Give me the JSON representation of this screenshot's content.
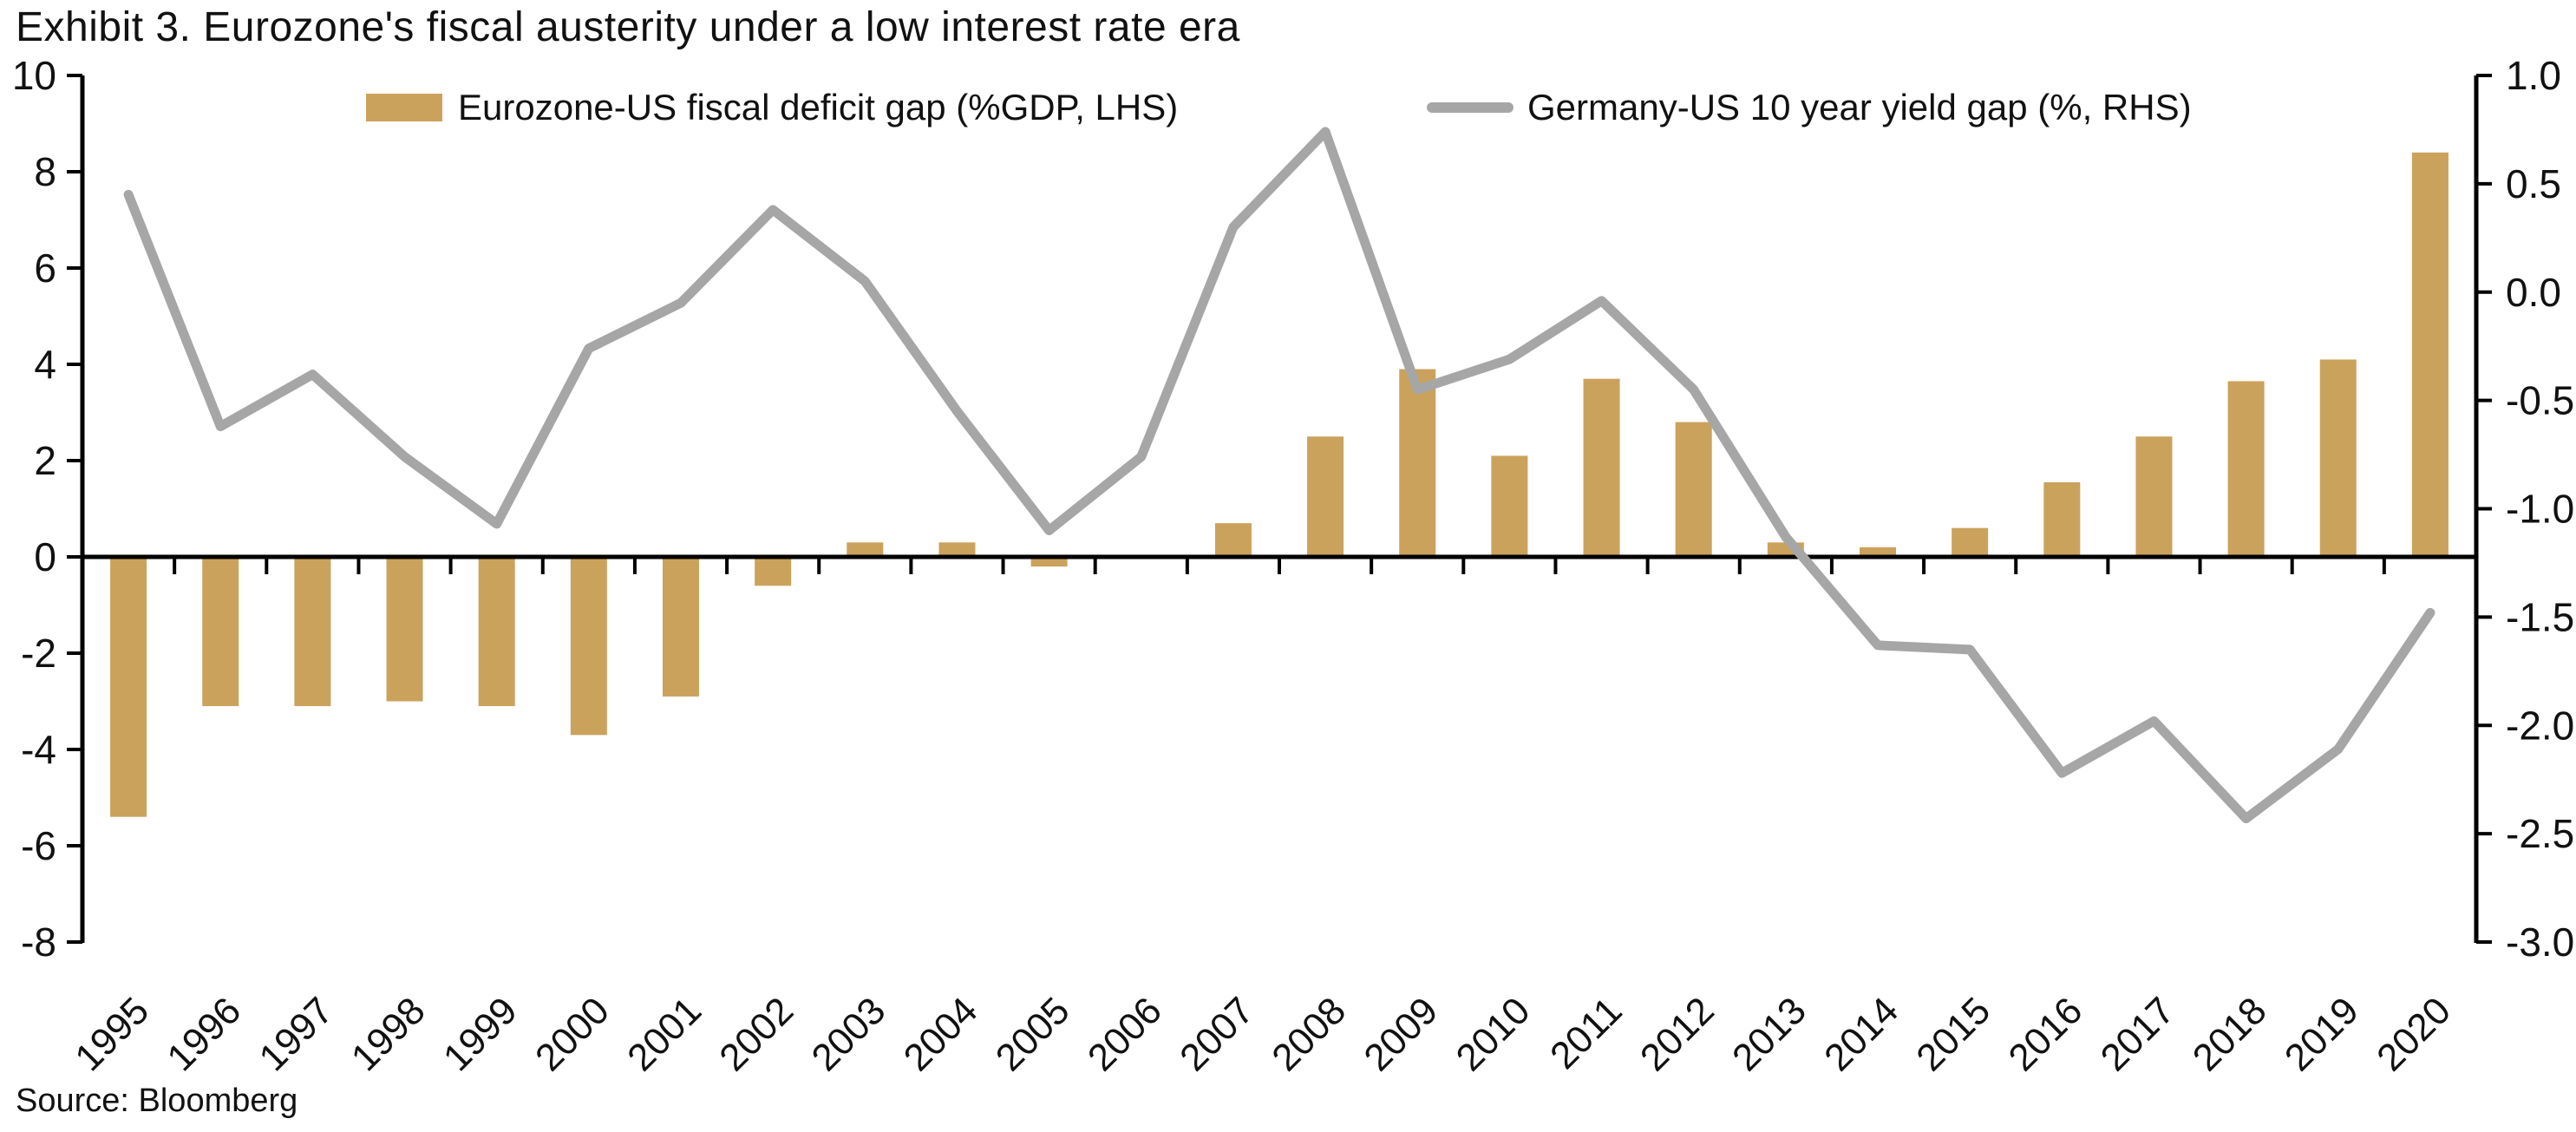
{
  "title": "Exhibit 3. Eurozone's fiscal austerity under a low interest rate era",
  "source": "Source: Bloomberg",
  "colors": {
    "bar": "#CBA25C",
    "line": "#A6A6A6",
    "axis": "#000000",
    "text": "#111111"
  },
  "chart_data": {
    "type": "bar",
    "subtype": "bar-and-line-dual-axis",
    "categories": [
      "1995",
      "1996",
      "1997",
      "1998",
      "1999",
      "2000",
      "2001",
      "2002",
      "2003",
      "2004",
      "2005",
      "2006",
      "2007",
      "2008",
      "2009",
      "2010",
      "2011",
      "2012",
      "2013",
      "2014",
      "2015",
      "2016",
      "2017",
      "2018",
      "2019",
      "2020"
    ],
    "series": [
      {
        "name": "Eurozone-US fiscal deficit gap (%GDP, LHS)",
        "type": "bar",
        "axis": "left",
        "color": "#CBA25C",
        "values": [
          -5.4,
          -3.1,
          -3.1,
          -3.0,
          -3.1,
          -3.7,
          -2.9,
          -0.6,
          0.3,
          0.3,
          -0.2,
          0.0,
          0.7,
          2.5,
          3.9,
          2.1,
          3.7,
          2.8,
          0.3,
          0.2,
          0.6,
          1.55,
          2.5,
          3.65,
          4.1,
          8.4
        ]
      },
      {
        "name": "Germany-US 10 year yield gap (%, RHS)",
        "type": "line",
        "axis": "right",
        "color": "#A6A6A6",
        "values": [
          0.45,
          -0.62,
          -0.38,
          -0.76,
          -1.07,
          -0.26,
          -0.05,
          0.38,
          0.05,
          -0.55,
          -1.1,
          -0.76,
          0.3,
          0.74,
          -0.45,
          -0.31,
          -0.04,
          -0.45,
          -1.13,
          -1.63,
          -1.65,
          -2.22,
          -1.98,
          -2.43,
          -2.11,
          -1.48
        ]
      }
    ],
    "left_axis": {
      "min": -8,
      "max": 10,
      "ticks": [
        10,
        8,
        6,
        4,
        2,
        0,
        -2,
        -4,
        -6,
        -8
      ]
    },
    "right_axis": {
      "min": -3.0,
      "max": 1.0,
      "ticks": [
        1.0,
        0.5,
        0.0,
        -0.5,
        -1.0,
        -1.5,
        -2.0,
        -2.5,
        -3.0
      ]
    },
    "grid": false,
    "legend_position": "top-inside"
  }
}
